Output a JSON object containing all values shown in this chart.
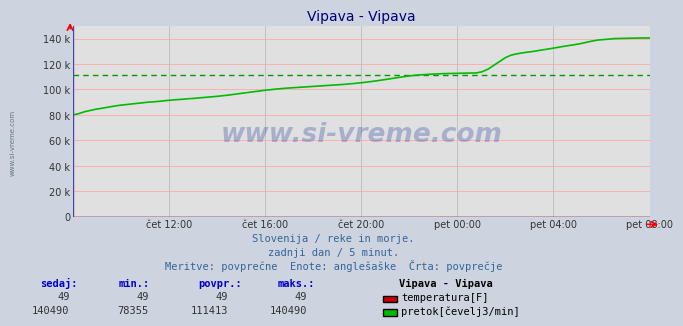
{
  "title": "Vipava - Vipava",
  "bg_color": "#cdd3df",
  "plot_bg_color": "#e0e0e0",
  "grid_color_h": "#ffaaaa",
  "grid_color_v": "#bbbbbb",
  "x_labels": [
    "čet 12:00",
    "čet 16:00",
    "čet 20:00",
    "pet 00:00",
    "pet 04:00",
    "pet 08:00"
  ],
  "ylim": [
    0,
    150000
  ],
  "yticks": [
    0,
    20000,
    40000,
    60000,
    80000,
    100000,
    120000,
    140000
  ],
  "ytick_labels": [
    "0",
    "20 k",
    "40 k",
    "60 k",
    "80 k",
    "100 k",
    "120 k",
    "140 k"
  ],
  "avg_line_value": 111413,
  "avg_line_color": "#009900",
  "line_color_flow": "#00bb00",
  "line_color_temp": "#cc0000",
  "watermark_text": "www.si-vreme.com",
  "subtitle1": "Slovenija / reke in morje.",
  "subtitle2": "zadnji dan / 5 minut.",
  "subtitle3": "Meritve: povprečne  Enote: anglešaške  Črta: povprečje",
  "table_headers": [
    "sedaj:",
    "min.:",
    "povpr.:",
    "maks.:"
  ],
  "table_temp": [
    "49",
    "49",
    "49",
    "49"
  ],
  "table_flow": [
    "140490",
    "78355",
    "111413",
    "140490"
  ],
  "legend_station": "Vipava - Vipava",
  "legend_temp": "temperatura[F]",
  "legend_flow": "pretok[čevelj3/min]",
  "flow_data_x": [
    0.0,
    0.01,
    0.02,
    0.03,
    0.04,
    0.05,
    0.06,
    0.07,
    0.08,
    0.09,
    0.1,
    0.11,
    0.12,
    0.13,
    0.14,
    0.15,
    0.16,
    0.17,
    0.18,
    0.19,
    0.2,
    0.21,
    0.22,
    0.23,
    0.24,
    0.25,
    0.26,
    0.27,
    0.28,
    0.29,
    0.3,
    0.31,
    0.32,
    0.33,
    0.34,
    0.35,
    0.36,
    0.37,
    0.38,
    0.39,
    0.4,
    0.41,
    0.42,
    0.43,
    0.44,
    0.45,
    0.46,
    0.47,
    0.48,
    0.49,
    0.5,
    0.51,
    0.52,
    0.53,
    0.54,
    0.55,
    0.56,
    0.57,
    0.58,
    0.59,
    0.6,
    0.61,
    0.62,
    0.63,
    0.64,
    0.65,
    0.66,
    0.67,
    0.68,
    0.69,
    0.7,
    0.71,
    0.72,
    0.73,
    0.74,
    0.75,
    0.76,
    0.77,
    0.78,
    0.79,
    0.8,
    0.81,
    0.82,
    0.83,
    0.84,
    0.85,
    0.86,
    0.87,
    0.88,
    0.89,
    0.9,
    0.91,
    0.92,
    0.93,
    0.94,
    0.95,
    0.96,
    0.97,
    0.98,
    0.99,
    1.0
  ],
  "flow_data_y": [
    80000,
    81000,
    82500,
    83500,
    84500,
    85200,
    86000,
    86800,
    87500,
    88000,
    88500,
    89000,
    89500,
    90000,
    90300,
    90700,
    91200,
    91600,
    92000,
    92300,
    92700,
    93000,
    93400,
    93800,
    94200,
    94600,
    95100,
    95600,
    96200,
    96800,
    97400,
    98000,
    98600,
    99200,
    99700,
    100200,
    100600,
    101000,
    101300,
    101600,
    101900,
    102200,
    102500,
    102800,
    103100,
    103400,
    103700,
    104000,
    104400,
    104800,
    105300,
    105800,
    106400,
    107000,
    107700,
    108400,
    109100,
    109800,
    110400,
    111000,
    111400,
    111700,
    112000,
    112200,
    112400,
    112500,
    112600,
    112700,
    112800,
    112900,
    113000,
    114000,
    116000,
    119000,
    122000,
    125000,
    127000,
    128000,
    128800,
    129400,
    130000,
    130800,
    131500,
    132200,
    133000,
    133800,
    134500,
    135200,
    136000,
    137000,
    138000,
    138800,
    139200,
    139600,
    140000,
    140100,
    140200,
    140300,
    140400,
    140450,
    140490
  ]
}
